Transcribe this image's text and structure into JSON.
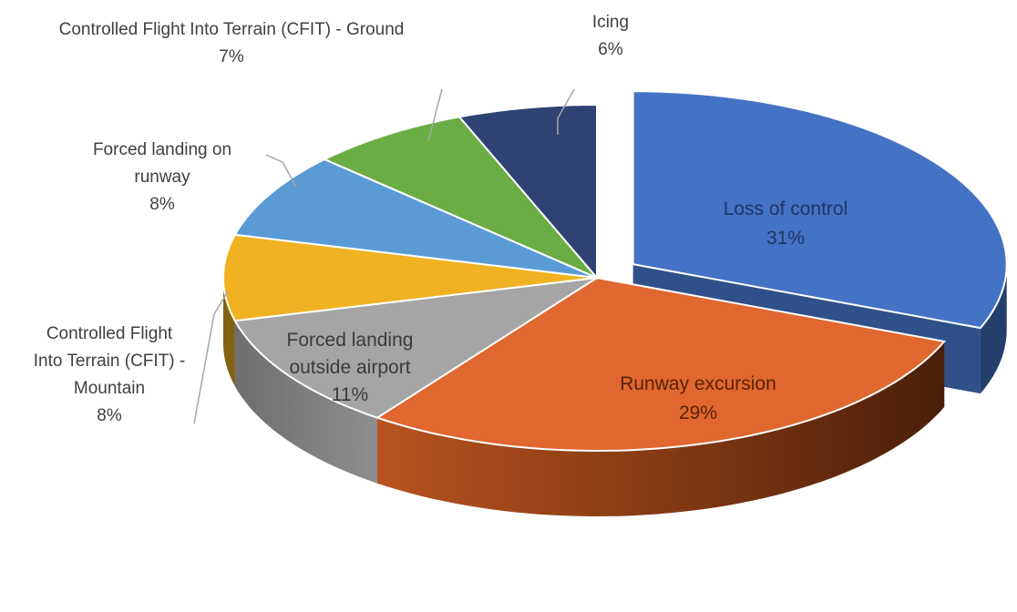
{
  "chart_data": {
    "type": "pie",
    "title": "",
    "style": "3d-exploded",
    "slices": [
      {
        "name": "Loss of control",
        "value": 31,
        "label": "31%",
        "color": "#4472c4"
      },
      {
        "name": "Runway excursion",
        "value": 29,
        "label": "29%",
        "color": "#e0672f"
      },
      {
        "name": "Forced landing outside airport",
        "value": 11,
        "label": "11%",
        "color": "#a5a5a5"
      },
      {
        "name": "Controlled Flight Into Terrain (CFIT) - Mountain",
        "value": 8,
        "label": "8%",
        "color": "#f0b222"
      },
      {
        "name": "Forced landing on runway",
        "value": 8,
        "label": "8%",
        "color": "#5b9bd5"
      },
      {
        "name": "Controlled Flight Into Terrain (CFIT) - Ground",
        "value": 7,
        "label": "7%",
        "color": "#6aad45"
      },
      {
        "name": "Icing",
        "value": 6,
        "label": "6%",
        "color": "#2e4373"
      }
    ],
    "label_text": {
      "loc": {
        "lines": [
          "Loss of control",
          "31%"
        ]
      },
      "runway": {
        "lines": [
          "Runway excursion",
          "29%"
        ]
      },
      "fl_outside": {
        "lines": [
          "Forced landing",
          "outside airport",
          "11%"
        ]
      },
      "cfit_mountain": {
        "lines": [
          "Controlled Flight",
          "Into Terrain (CFIT) -",
          "Mountain",
          "8%"
        ]
      },
      "fl_runway": {
        "lines": [
          "Forced landing on",
          "runway",
          "8%"
        ]
      },
      "cfit_ground": {
        "lines": [
          "Controlled Flight Into Terrain (CFIT) - Ground",
          "7%"
        ]
      },
      "icing": {
        "lines": [
          "Icing",
          "6%"
        ]
      }
    }
  }
}
